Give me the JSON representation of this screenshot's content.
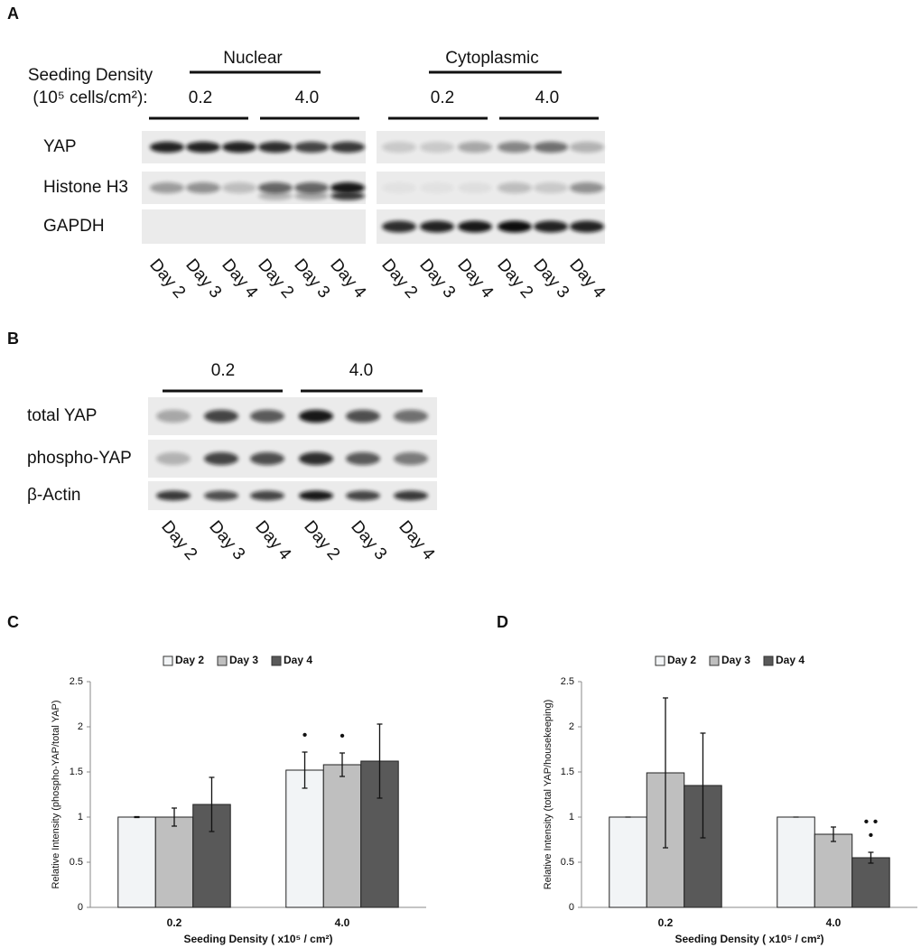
{
  "panel_a": {
    "label": "A",
    "seeding_label": "Seeding Density",
    "unit_label": "(10⁵ cells/cm²):",
    "groups": [
      {
        "name": "Nuclear",
        "densities": [
          "0.2",
          "4.0"
        ]
      },
      {
        "name": "Cytoplasmic",
        "densities": [
          "0.2",
          "4.0"
        ]
      }
    ],
    "rows": [
      "YAP",
      "Histone H3",
      "GAPDH"
    ],
    "lanes": [
      "Day 2",
      "Day 3",
      "Day 4"
    ]
  },
  "panel_b": {
    "label": "B",
    "densities": [
      "0.2",
      "4.0"
    ],
    "rows": [
      "total YAP",
      "phospho-YAP",
      "β-Actin"
    ],
    "lanes": [
      "Day 2",
      "Day 3",
      "Day 4"
    ]
  },
  "chart_data": [
    {
      "type": "bar",
      "panel_label": "C",
      "y_label": "Relative Intensity (phospho-YAP/total YAP)",
      "x_label": "Seeding Density ( x10⁵ / cm²)",
      "categories": [
        "0.2",
        "4.0"
      ],
      "series": [
        {
          "name": "Day 2",
          "color": "#f2f4f6",
          "values": [
            1.0,
            1.52
          ],
          "errors": [
            0.005,
            0.2
          ],
          "sig_labels": [
            null,
            [
              "•"
            ]
          ]
        },
        {
          "name": "Day 3",
          "color": "#bfbfbf",
          "values": [
            1.0,
            1.58
          ],
          "errors": [
            0.1,
            0.13
          ],
          "sig_labels": [
            null,
            [
              "•"
            ]
          ]
        },
        {
          "name": "Day 4",
          "color": "#595959",
          "values": [
            1.14,
            1.62
          ],
          "errors": [
            0.3,
            0.41
          ],
          "sig_labels": [
            null,
            null
          ]
        }
      ],
      "ylim": [
        0,
        2.5
      ],
      "yticks": [
        0,
        0.5,
        1,
        1.5,
        2,
        2.5
      ]
    },
    {
      "type": "bar",
      "panel_label": "D",
      "y_label": "Relative Intensity (total YAP/housekeeping)",
      "x_label": "Seeding Density ( x10⁵ / cm²)",
      "categories": [
        "0.2",
        "4.0"
      ],
      "series": [
        {
          "name": "Day 2",
          "color": "#f2f4f6",
          "values": [
            1.0,
            1.0
          ],
          "errors": [
            0,
            0
          ],
          "sig_labels": [
            null,
            null
          ]
        },
        {
          "name": "Day 3",
          "color": "#bfbfbf",
          "values": [
            1.49,
            0.81
          ],
          "errors": [
            0.83,
            0.08
          ],
          "sig_labels": [
            null,
            null
          ]
        },
        {
          "name": "Day 4",
          "color": "#595959",
          "values": [
            1.35,
            0.55
          ],
          "errors": [
            0.58,
            0.06
          ],
          "sig_labels": [
            null,
            [
              "• •",
              "•"
            ]
          ]
        }
      ],
      "ylim": [
        0,
        2.5
      ],
      "yticks": [
        0,
        0.5,
        1,
        1.5,
        2,
        2.5
      ]
    }
  ]
}
